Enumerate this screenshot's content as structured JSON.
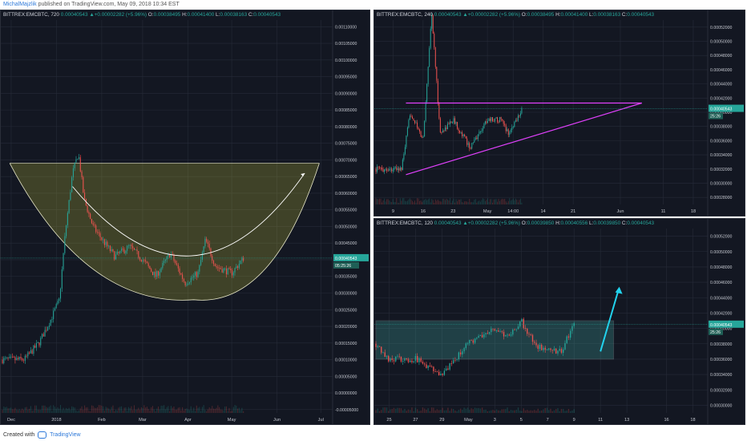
{
  "header": {
    "author": "MichalMajzlik",
    "published": "published on TradingView.com, May 09, 2018 10:34 EST"
  },
  "footer": {
    "created_with": "Created with",
    "brand": "TradingView"
  },
  "colors": {
    "background": "#131722",
    "up": "#26a69a",
    "down": "#ef5350",
    "grid": "#262b38",
    "axis_text": "#c3c6ce",
    "pattern_fill": "#b5b53a",
    "triangle_line": "#e040fb",
    "box_fill": "#4fd1c5",
    "arrow": "#22d3ee"
  },
  "chart_data": [
    {
      "type": "candlestick",
      "symbol": "BITTREX:EMCBTC",
      "interval": "720",
      "ohlc_label": {
        "price": "0.00040543",
        "change": "+0.00002282 (+5.96%)",
        "o": "0.00038495",
        "h": "0.00041400",
        "l": "0.00038163",
        "c": "0.00040543"
      },
      "x_ticks": [
        "Dec",
        "2018",
        "Feb",
        "Mar",
        "Apr",
        "May",
        "Jun",
        "Jul"
      ],
      "y_ticks": [
        "0.00110000",
        "0.00105000",
        "0.00100000",
        "0.00095000",
        "0.00090000",
        "0.00085000",
        "0.00080000",
        "0.00075000",
        "0.00070000",
        "0.00065000",
        "0.00060000",
        "0.00055000",
        "0.00050000",
        "0.00045000",
        "0.00040000",
        "0.00035000",
        "0.00030000",
        "0.00025000",
        "0.00020000",
        "0.00015000",
        "0.00010000",
        "0.00005000",
        "0.00000000",
        "-0.00005000"
      ],
      "ylim": [
        -6e-05,
        0.00112
      ],
      "price_badge": "0.00040543",
      "countdown_badge": "05:25:26",
      "key_points": [
        {
          "x": "Nov 25",
          "y": 0.0001
        },
        {
          "x": "Dec 10",
          "y": 0.0001
        },
        {
          "x": "Dec 20",
          "y": 0.00015
        },
        {
          "x": "Dec 28",
          "y": 0.00022
        },
        {
          "x": "Jan 3",
          "y": 0.00028
        },
        {
          "x": "Jan 7",
          "y": 0.00048
        },
        {
          "x": "Jan 12",
          "y": 0.00066
        },
        {
          "x": "Jan 16",
          "y": 0.00072
        },
        {
          "x": "Jan 20",
          "y": 0.00058
        },
        {
          "x": "Jan 26",
          "y": 0.0005
        },
        {
          "x": "Feb 3",
          "y": 0.00045
        },
        {
          "x": "Feb 10",
          "y": 0.00041
        },
        {
          "x": "Feb 20",
          "y": 0.00044
        },
        {
          "x": "Mar 1",
          "y": 0.0004
        },
        {
          "x": "Mar 10",
          "y": 0.00035
        },
        {
          "x": "Mar 20",
          "y": 0.00042
        },
        {
          "x": "Mar 30",
          "y": 0.00033
        },
        {
          "x": "Apr 8",
          "y": 0.00036
        },
        {
          "x": "Apr 13",
          "y": 0.00046
        },
        {
          "x": "Apr 20",
          "y": 0.00038
        },
        {
          "x": "May 1",
          "y": 0.00036
        },
        {
          "x": "May 9",
          "y": 0.000405
        }
      ],
      "annotations": {
        "rim_level": 0.00069,
        "rim_from": "Nov 30",
        "rim_to": "Jun 30",
        "bottom_level": 0.00028,
        "bottom_at": "Apr 5",
        "arrow_to": {
          "x": "Jun 20",
          "y": 0.00066
        }
      }
    },
    {
      "type": "candlestick",
      "symbol": "BITTREX:EMCBTC",
      "interval": "240",
      "ohlc_label": {
        "price": "0.00040543",
        "change": "+0.00002282 (+5.96%)",
        "o": "0.00038495",
        "h": "0.00041400",
        "l": "0.00038163",
        "c": "0.00040543"
      },
      "x_ticks": [
        "9",
        "16",
        "23",
        "May",
        "14:00",
        "14",
        "21",
        "Jun",
        "11",
        "18"
      ],
      "y_ticks": [
        "0.00052000",
        "0.00050000",
        "0.00048000",
        "0.00046000",
        "0.00044000",
        "0.00042000",
        "0.00040000",
        "0.00038000",
        "0.00036000",
        "0.00034000",
        "0.00032000",
        "0.00030000",
        "0.00028000"
      ],
      "ylim": [
        0.00027,
        0.00053
      ],
      "price_badge": "0.00040543",
      "countdown_badge": "25:26",
      "key_points": [
        {
          "x": "Apr 5",
          "y": 0.00032
        },
        {
          "x": "Apr 11",
          "y": 0.00032
        },
        {
          "x": "Apr 13",
          "y": 0.0004
        },
        {
          "x": "Apr 16",
          "y": 0.00036
        },
        {
          "x": "Apr 18",
          "y": 0.00054
        },
        {
          "x": "Apr 20",
          "y": 0.00037
        },
        {
          "x": "Apr 23",
          "y": 0.00039
        },
        {
          "x": "Apr 27",
          "y": 0.00035
        },
        {
          "x": "May 1",
          "y": 0.00039
        },
        {
          "x": "May 4",
          "y": 0.00039
        },
        {
          "x": "May 6",
          "y": 0.00037
        },
        {
          "x": "May 9",
          "y": 0.000405
        }
      ],
      "annotations": {
        "triangle_top": 0.000413,
        "triangle_start_low": 0.000312,
        "triangle_start": "Apr 12",
        "triangle_apex": "Jun 6"
      }
    },
    {
      "type": "candlestick",
      "symbol": "BITTREX:EMCBTC",
      "interval": "120",
      "ohlc_label": {
        "price": "0.00040543",
        "change": "+0.00002282 (+5.96%)",
        "o": "0.00039850",
        "h": "0.00040556",
        "l": "0.00039850",
        "c": "0.00040543"
      },
      "x_ticks": [
        "25",
        "27",
        "29",
        "May",
        "3",
        "5",
        "7",
        "9",
        "11",
        "13",
        "16",
        "18"
      ],
      "y_ticks": [
        "0.00052000",
        "0.00050000",
        "0.00048000",
        "0.00046000",
        "0.00044000",
        "0.00042000",
        "0.00040000",
        "0.00038000",
        "0.00036000",
        "0.00034000",
        "0.00032000",
        "0.00030000"
      ],
      "ylim": [
        0.00029,
        0.00053
      ],
      "price_badge": "0.00040543",
      "countdown_badge": "25:26",
      "key_points": [
        {
          "x": "Apr 24",
          "y": 0.00038
        },
        {
          "x": "Apr 25",
          "y": 0.00036
        },
        {
          "x": "Apr 27",
          "y": 0.00036
        },
        {
          "x": "Apr 29",
          "y": 0.00034
        },
        {
          "x": "May 1",
          "y": 0.00038
        },
        {
          "x": "May 2",
          "y": 0.00039
        },
        {
          "x": "May 3",
          "y": 0.0004
        },
        {
          "x": "May 4",
          "y": 0.00039
        },
        {
          "x": "May 5",
          "y": 0.00041
        },
        {
          "x": "May 6",
          "y": 0.00038
        },
        {
          "x": "May 7",
          "y": 0.00037
        },
        {
          "x": "May 8",
          "y": 0.00037
        },
        {
          "x": "May 9",
          "y": 0.000405
        }
      ],
      "annotations": {
        "range_top": 0.00041,
        "range_bottom": 0.00036,
        "range_from": "Apr 24",
        "range_to": "May 12",
        "arrow_from": {
          "x": "May 11",
          "y": 0.00037
        },
        "arrow_to": {
          "x": "May 12",
          "y": 0.00045
        }
      }
    }
  ]
}
